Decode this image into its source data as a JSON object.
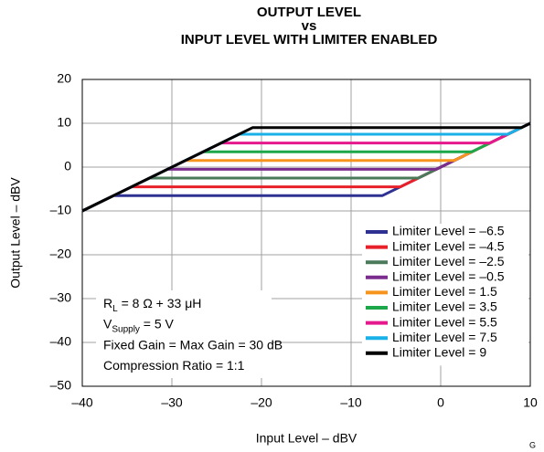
{
  "chart_data": {
    "type": "line",
    "title": [
      "OUTPUT LEVEL",
      "vs",
      "INPUT LEVEL WITH LIMITER ENABLED"
    ],
    "xlabel": "Input Level – dBV",
    "ylabel": "Output Level – dBV",
    "xlim": [
      -40,
      10
    ],
    "ylim": [
      -50,
      20
    ],
    "xticks": [
      {
        "value": -40,
        "label": "–40"
      },
      {
        "value": -30,
        "label": "–30"
      },
      {
        "value": -20,
        "label": "–20"
      },
      {
        "value": -10,
        "label": "–10"
      },
      0,
      10
    ],
    "yticks": [
      {
        "value": -50,
        "label": "–50"
      },
      {
        "value": -40,
        "label": "–40"
      },
      {
        "value": -30,
        "label": "–30"
      },
      {
        "value": -20,
        "label": "–20"
      },
      {
        "value": -10,
        "label": "–10"
      },
      0,
      10,
      20
    ],
    "grid": true,
    "legend": "lower right",
    "series": [
      {
        "name": "Limiter Level = –6.5",
        "color": "#2e3192",
        "x": [
          -40,
          -36.5,
          -6.5,
          10
        ],
        "values": [
          -10,
          -6.5,
          -6.5,
          10
        ]
      },
      {
        "name": "Limiter Level = –4.5",
        "color": "#e8202a",
        "x": [
          -40,
          -34.5,
          -4.5,
          10
        ],
        "values": [
          -10,
          -4.5,
          -4.5,
          10
        ]
      },
      {
        "name": "Limiter Level = –2.5",
        "color": "#4a7a5a",
        "x": [
          -40,
          -32.5,
          -2.5,
          10
        ],
        "values": [
          -10,
          -2.5,
          -2.5,
          10
        ]
      },
      {
        "name": "Limiter Level = –0.5",
        "color": "#7b2d8e",
        "x": [
          -40,
          -30.5,
          -0.5,
          10
        ],
        "values": [
          -10,
          -0.5,
          -0.5,
          10
        ]
      },
      {
        "name": "Limiter Level = 1.5",
        "color": "#f7941d",
        "x": [
          -40,
          -28.5,
          1.5,
          10
        ],
        "values": [
          -10,
          1.5,
          1.5,
          10
        ]
      },
      {
        "name": "Limiter Level = 3.5",
        "color": "#1ca84a",
        "x": [
          -40,
          -26.5,
          3.5,
          10
        ],
        "values": [
          -10,
          3.5,
          3.5,
          10
        ]
      },
      {
        "name": "Limiter Level = 5.5",
        "color": "#e6198c",
        "x": [
          -40,
          -24.5,
          5.5,
          10
        ],
        "values": [
          -10,
          5.5,
          5.5,
          10
        ]
      },
      {
        "name": "Limiter Level = 7.5",
        "color": "#1ab0e8",
        "x": [
          -40,
          -22.5,
          7.5,
          10
        ],
        "values": [
          -10,
          7.5,
          7.5,
          10
        ]
      },
      {
        "name": "Limiter Level = 9",
        "color": "#000000",
        "x": [
          -40,
          -21,
          9,
          10
        ],
        "values": [
          -10,
          9,
          9,
          10
        ]
      }
    ],
    "annotations": [
      {
        "main": "R",
        "sub": "L",
        "rest": " = 8 Ω + 33 μH"
      },
      {
        "main": "V",
        "sub": "Supply",
        "rest": " = 5 V"
      },
      {
        "main": "Fixed Gain = Max Gain = 30 dB"
      },
      {
        "main": "Compression Ratio = 1:1"
      }
    ],
    "footnote": "G"
  }
}
